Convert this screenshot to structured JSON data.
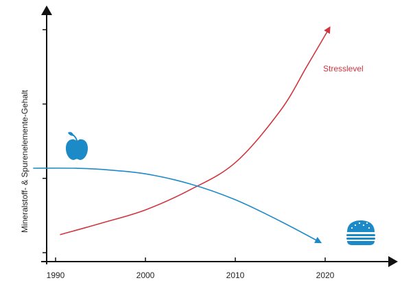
{
  "chart_data": {
    "type": "line",
    "title": "",
    "xlabel": "",
    "ylabel": "Mineralstoff- & Spurenelemente-Gehalt",
    "xlim": [
      1985,
      2026
    ],
    "ylim": [
      0,
      100
    ],
    "x_ticks": [
      1990,
      2000,
      2010,
      2020
    ],
    "y_ticks": [
      0,
      33,
      66,
      99
    ],
    "x_tick_labels": [
      "1990",
      "2000",
      "2010",
      "2020"
    ],
    "grid": false,
    "legend": "none",
    "series": [
      {
        "name": "Stresslevel",
        "color": "#d0353d",
        "label_position": "top-right",
        "points": [
          [
            1990.5,
            8
          ],
          [
            1995,
            13
          ],
          [
            2000,
            19
          ],
          [
            2005,
            28
          ],
          [
            2010,
            40
          ],
          [
            2015,
            63
          ],
          [
            2018,
            83
          ],
          [
            2020.5,
            100
          ]
        ]
      },
      {
        "name": "",
        "color": "#1d8ac8",
        "points": [
          [
            1987.5,
            37.5
          ],
          [
            1992,
            37.5
          ],
          [
            1995,
            37
          ],
          [
            2000,
            35
          ],
          [
            2005,
            30.5
          ],
          [
            2010,
            23.5
          ],
          [
            2015,
            14
          ],
          [
            2019.5,
            4.5
          ]
        ],
        "start_icon": "apple-icon",
        "end_icon": "burger-icon"
      }
    ]
  }
}
